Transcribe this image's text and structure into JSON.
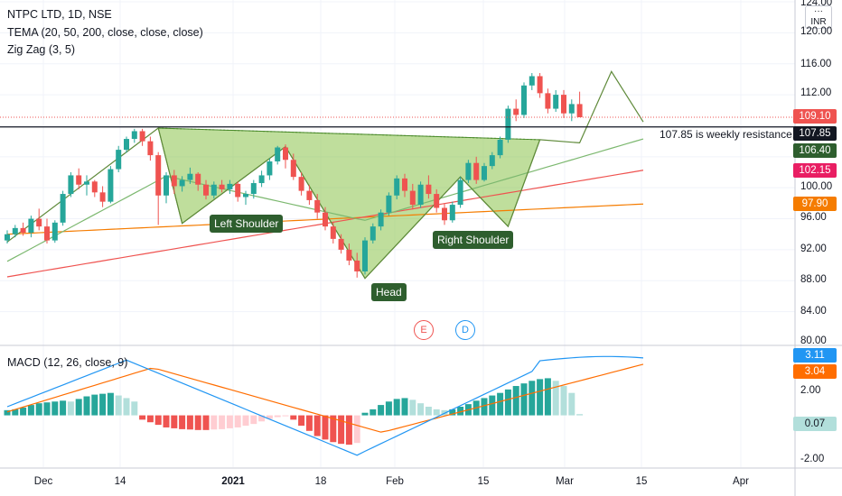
{
  "header": {
    "title": "NTPC LTD, 1D, NSE",
    "tema": "TEMA (20, 50, 200, close, close, close)",
    "zigzag": "Zig Zag (3, 5)",
    "macd": "MACD (12, 26, close, 9)",
    "currency": "INR"
  },
  "annotations": {
    "left_shoulder": "Left Shoulder",
    "head": "Head",
    "right_shoulder": "Right Shoulder",
    "resistance_note": "107.85 is weekly resistance.",
    "event_e": "E",
    "event_d": "D"
  },
  "price_tags": {
    "last": "109.10",
    "resistance": "107.85",
    "tema20": "106.40",
    "tema50": "102.15",
    "tema200": "97.90",
    "macd": "3.11",
    "signal": "3.04",
    "hist": "0.07"
  },
  "y_axis": [
    "124.00",
    "120.00",
    "116.00",
    "112.00",
    "108.00",
    "104.00",
    "100.00",
    "96.00",
    "92.00",
    "88.00",
    "84.00",
    "80.00"
  ],
  "macd_axis": [
    "2.00",
    "-2.00"
  ],
  "x_axis": [
    "Dec",
    "14",
    "2021",
    "18",
    "Feb",
    "15",
    "Mar",
    "15",
    "Apr"
  ],
  "colors": {
    "up": "#26a69a",
    "down": "#ef5350",
    "pattern_fill": "#8bc34a",
    "pattern_line": "#4a8a2a",
    "tema20": "#7cb86f",
    "tema50": "#ef5350",
    "tema200": "#f57c00",
    "macd": "#2196f3",
    "signal": "#ff6d00",
    "badge": "#2e5e2e"
  },
  "chart_data": {
    "type": "candlestick",
    "symbol": "NTPC LTD",
    "interval": "1D",
    "exchange": "NSE",
    "ylim": [
      80,
      124
    ],
    "candles_ohlc": [
      [
        93.2,
        94.5,
        92.8,
        94.0
      ],
      [
        94.0,
        95.2,
        93.6,
        94.8
      ],
      [
        94.8,
        95.5,
        93.8,
        94.2
      ],
      [
        94.2,
        96.4,
        93.6,
        96.0
      ],
      [
        96.0,
        97.3,
        94.5,
        95.0
      ],
      [
        95.0,
        96.0,
        92.8,
        93.2
      ],
      [
        93.2,
        95.8,
        92.9,
        95.5
      ],
      [
        95.5,
        99.6,
        95.1,
        99.2
      ],
      [
        99.2,
        102.0,
        98.8,
        101.6
      ],
      [
        101.6,
        102.5,
        99.8,
        100.4
      ],
      [
        100.4,
        101.6,
        99.0,
        100.8
      ],
      [
        100.8,
        101.0,
        98.8,
        99.4
      ],
      [
        99.4,
        100.2,
        97.5,
        98.2
      ],
      [
        98.2,
        102.8,
        98.0,
        102.4
      ],
      [
        102.4,
        105.4,
        102.0,
        104.9
      ],
      [
        104.9,
        106.6,
        104.5,
        106.3
      ],
      [
        106.3,
        107.6,
        105.8,
        107.3
      ],
      [
        107.3,
        107.6,
        105.4,
        106.0
      ],
      [
        106.0,
        106.6,
        103.5,
        104.2
      ],
      [
        104.2,
        104.6,
        95.2,
        99.0
      ],
      [
        99.0,
        102.0,
        98.0,
        101.6
      ],
      [
        101.6,
        102.3,
        99.2,
        100.2
      ],
      [
        100.2,
        101.5,
        99.5,
        101.0
      ],
      [
        101.0,
        102.6,
        100.5,
        101.8
      ],
      [
        101.8,
        102.0,
        99.6,
        100.4
      ],
      [
        100.4,
        101.0,
        98.5,
        99.0
      ],
      [
        99.0,
        100.8,
        98.6,
        100.4
      ],
      [
        100.4,
        101.0,
        99.4,
        99.8
      ],
      [
        99.8,
        101.0,
        99.2,
        100.5
      ],
      [
        100.5,
        100.8,
        98.2,
        98.8
      ],
      [
        98.8,
        99.6,
        97.8,
        99.2
      ],
      [
        99.2,
        101.0,
        98.6,
        100.6
      ],
      [
        100.6,
        102.2,
        100.1,
        101.6
      ],
      [
        101.6,
        103.8,
        101.0,
        103.4
      ],
      [
        103.4,
        105.4,
        103.0,
        105.2
      ],
      [
        105.2,
        105.6,
        102.5,
        103.6
      ],
      [
        103.6,
        104.4,
        101.0,
        101.4
      ],
      [
        101.4,
        102.0,
        99.0,
        99.6
      ],
      [
        99.6,
        100.4,
        97.8,
        98.4
      ],
      [
        98.4,
        99.2,
        96.0,
        96.8
      ],
      [
        96.8,
        97.5,
        94.5,
        95.0
      ],
      [
        95.0,
        95.6,
        92.8,
        93.4
      ],
      [
        93.4,
        94.0,
        91.5,
        92.0
      ],
      [
        92.0,
        92.8,
        90.0,
        90.6
      ],
      [
        90.6,
        91.6,
        88.4,
        89.2
      ],
      [
        89.2,
        93.6,
        88.8,
        93.2
      ],
      [
        93.2,
        95.4,
        92.8,
        95.0
      ],
      [
        95.0,
        97.2,
        94.5,
        96.8
      ],
      [
        96.8,
        99.4,
        96.4,
        99.0
      ],
      [
        99.0,
        101.6,
        98.5,
        101.2
      ],
      [
        101.2,
        101.8,
        98.8,
        99.6
      ],
      [
        99.6,
        100.5,
        97.2,
        97.8
      ],
      [
        97.8,
        100.8,
        97.4,
        100.4
      ],
      [
        100.4,
        101.6,
        98.6,
        99.2
      ],
      [
        99.2,
        99.8,
        96.8,
        97.4
      ],
      [
        97.4,
        98.0,
        95.2,
        95.8
      ],
      [
        95.8,
        98.2,
        95.5,
        97.8
      ],
      [
        97.8,
        101.4,
        97.4,
        101.0
      ],
      [
        101.0,
        103.6,
        100.6,
        103.2
      ],
      [
        103.2,
        104.0,
        100.5,
        101.0
      ],
      [
        101.0,
        103.2,
        100.8,
        102.8
      ],
      [
        102.8,
        104.6,
        102.4,
        104.2
      ],
      [
        104.2,
        106.6,
        103.8,
        106.2
      ],
      [
        106.2,
        110.6,
        105.8,
        110.2
      ],
      [
        110.2,
        111.4,
        108.6,
        109.4
      ],
      [
        109.4,
        113.6,
        109.0,
        113.2
      ],
      [
        113.2,
        114.8,
        112.6,
        114.4
      ],
      [
        114.4,
        114.8,
        111.6,
        112.2
      ],
      [
        112.2,
        112.8,
        109.6,
        110.2
      ],
      [
        110.2,
        112.6,
        109.8,
        112.0
      ],
      [
        112.0,
        112.6,
        109.0,
        109.6
      ],
      [
        109.6,
        111.4,
        108.6,
        110.8
      ],
      [
        110.8,
        112.4,
        110.0,
        109.1
      ]
    ],
    "zigzag": [
      [
        0,
        93.0
      ],
      [
        19,
        107.7
      ],
      [
        22,
        95.4
      ],
      [
        35,
        105.3
      ],
      [
        45,
        88.3
      ],
      [
        57,
        101.4
      ],
      [
        63,
        95.0
      ],
      [
        67,
        106.2
      ],
      [
        72,
        105.8
      ],
      [
        76,
        115.0
      ],
      [
        80,
        108.5
      ]
    ],
    "macd_hist": [
      0.3,
      0.35,
      0.45,
      0.6,
      0.7,
      0.75,
      0.8,
      0.85,
      0.8,
      0.95,
      1.1,
      1.2,
      1.25,
      1.3,
      1.15,
      1.0,
      0.8,
      -0.25,
      -0.4,
      -0.55,
      -0.7,
      -0.75,
      -0.8,
      -0.82,
      -0.85,
      -0.85,
      -0.82,
      -0.8,
      -0.75,
      -0.7,
      -0.6,
      -0.5,
      -0.35,
      -0.2,
      -0.1,
      -0.05,
      -0.25,
      -0.6,
      -0.9,
      -1.2,
      -1.4,
      -1.55,
      -1.65,
      -1.7,
      -1.6,
      0.15,
      0.35,
      0.6,
      0.8,
      0.95,
      1.0,
      0.9,
      0.7,
      0.5,
      0.35,
      0.3,
      0.35,
      0.5,
      0.65,
      0.85,
      1.0,
      1.15,
      1.3,
      1.5,
      1.7,
      1.85,
      2.0,
      2.1,
      2.15,
      2.0,
      1.7,
      1.3,
      0.07
    ],
    "macd_ylim": [
      -3.0,
      4.0
    ]
  }
}
